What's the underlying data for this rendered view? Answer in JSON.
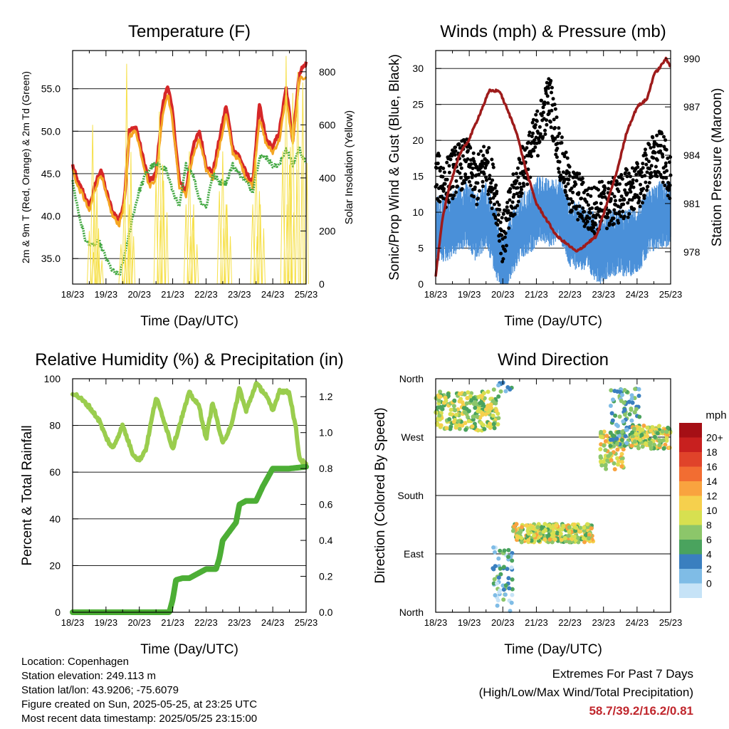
{
  "chart_data": [
    {
      "type": "line",
      "title": "Temperature (F)",
      "xlabel": "Time (Day/UTC)",
      "ylabel": "2m & 9m T (Red, Orange) & 2m Td (Green)",
      "ylabel_right": "Solar Insolation (Yellow)",
      "x_ticks": [
        "18/23",
        "19/23",
        "20/23",
        "21/23",
        "22/23",
        "23/23",
        "24/23",
        "25/23"
      ],
      "ylim": [
        32,
        59.5
      ],
      "y_ticks": [
        "35.0",
        "40.0",
        "45.0",
        "50.0",
        "55.0"
      ],
      "y_tick_values": [
        35,
        40,
        45,
        50,
        55
      ],
      "ylim_right": [
        0,
        880
      ],
      "y_ticks_right": [
        "0",
        "200",
        "400",
        "600",
        "800"
      ],
      "y_tick_values_right": [
        0,
        200,
        400,
        600,
        800
      ],
      "series": [
        {
          "color": "#d62728",
          "axis": "left",
          "style": "line",
          "x": [
            0,
            0.15,
            0.3,
            0.5,
            0.7,
            0.85,
            1,
            1.2,
            1.4,
            1.55,
            1.7,
            1.9,
            2.1,
            2.3,
            2.5,
            2.7,
            2.85,
            3,
            3.2,
            3.4,
            3.6,
            3.8,
            4,
            4.2,
            4.4,
            4.6,
            4.8,
            5,
            5.2,
            5.4,
            5.6,
            5.8,
            6,
            6.2,
            6.4,
            6.6,
            6.8,
            7
          ],
          "values": [
            46,
            44,
            43,
            41,
            44,
            45.5,
            43,
            40.5,
            39.5,
            42,
            50,
            50.5,
            47,
            44,
            45,
            53,
            55.5,
            52,
            44,
            43,
            48,
            50,
            46,
            45,
            49,
            53,
            48,
            47,
            45,
            44,
            53,
            49,
            48,
            50,
            55,
            49,
            57,
            58
          ]
        },
        {
          "color": "#f5a623",
          "axis": "left",
          "style": "line",
          "x": [
            0,
            0.15,
            0.3,
            0.5,
            0.7,
            0.85,
            1,
            1.2,
            1.4,
            1.55,
            1.7,
            1.9,
            2.1,
            2.3,
            2.5,
            2.7,
            2.85,
            3,
            3.2,
            3.4,
            3.6,
            3.8,
            4,
            4.2,
            4.4,
            4.6,
            4.8,
            5,
            5.2,
            5.4,
            5.6,
            5.8,
            6,
            6.2,
            6.4,
            6.6,
            6.8,
            7
          ],
          "values": [
            45.5,
            43.5,
            42.5,
            40.5,
            43.5,
            45,
            42.5,
            40,
            39,
            41.5,
            49.5,
            50,
            46.5,
            43.5,
            44.5,
            52,
            54.5,
            51,
            43.5,
            42.5,
            47,
            49,
            45.5,
            44.5,
            48,
            52,
            47.5,
            46.5,
            44.5,
            43.5,
            51.5,
            48.5,
            47.5,
            49,
            54,
            48.5,
            56,
            56.5
          ]
        },
        {
          "color": "#43a843",
          "axis": "left",
          "style": "line",
          "x": [
            0,
            0.2,
            0.4,
            0.6,
            0.8,
            1,
            1.2,
            1.4,
            1.6,
            1.8,
            2,
            2.2,
            2.4,
            2.6,
            2.8,
            3,
            3.2,
            3.4,
            3.6,
            3.8,
            4,
            4.2,
            4.4,
            4.6,
            4.8,
            5,
            5.2,
            5.4,
            5.6,
            5.8,
            6,
            6.2,
            6.4,
            6.6,
            6.8,
            7
          ],
          "values": [
            44,
            40,
            37,
            36.5,
            37,
            35,
            33.5,
            33,
            36,
            40,
            43,
            45,
            46,
            46,
            45.5,
            43,
            41,
            46,
            45,
            42,
            41,
            45,
            44,
            44,
            46,
            45,
            44,
            43,
            47,
            47,
            46,
            46,
            48,
            46,
            48,
            46
          ]
        },
        {
          "color": "#f6e04a",
          "axis": "right",
          "style": "spikes",
          "x": [
            0.5,
            0.6,
            0.65,
            0.75,
            1.45,
            1.55,
            1.62,
            1.7,
            2.5,
            2.6,
            2.7,
            3.4,
            3.5,
            3.6,
            4.4,
            4.5,
            4.6,
            5.4,
            5.5,
            5.6,
            6.3,
            6.4,
            6.5,
            6.6,
            6.75,
            6.9
          ],
          "values": [
            200,
            600,
            350,
            150,
            150,
            350,
            830,
            300,
            400,
            650,
            450,
            300,
            500,
            250,
            350,
            500,
            300,
            300,
            500,
            350,
            500,
            860,
            450,
            720,
            800,
            760
          ]
        }
      ]
    },
    {
      "type": "scatter",
      "title": "Winds (mph) & Pressure (mb)",
      "xlabel": "Time (Day/UTC)",
      "ylabel": "Sonic/Prop Wind & Gust (Blue, Black)",
      "ylabel_right": "Station Pressure (Maroon)",
      "x_ticks": [
        "18/23",
        "19/23",
        "20/23",
        "21/23",
        "22/23",
        "23/23",
        "24/23",
        "25/23"
      ],
      "ylim": [
        0,
        32.5
      ],
      "y_ticks": [
        "0",
        "5",
        "10",
        "15",
        "20",
        "25",
        "30"
      ],
      "y_tick_values": [
        0,
        5,
        10,
        15,
        20,
        25,
        30
      ],
      "ylim_right": [
        976,
        990.5
      ],
      "y_ticks_right": [
        "978",
        "981",
        "984",
        "987",
        "990"
      ],
      "y_tick_values_right": [
        978,
        981,
        984,
        987,
        990
      ],
      "series": [
        {
          "color": "#4a90d9",
          "axis": "left",
          "style": "band",
          "x": [
            0,
            0.3,
            0.6,
            0.9,
            1.2,
            1.5,
            1.8,
            2,
            2.2,
            2.5,
            2.8,
            3.1,
            3.4,
            3.7,
            4,
            4.3,
            4.6,
            4.9,
            5.2,
            5.5,
            5.8,
            6.1,
            6.4,
            6.7,
            7
          ],
          "values": [
            9,
            9,
            10,
            11,
            9,
            11,
            7,
            3,
            6,
            9,
            10,
            12,
            11,
            12,
            8,
            8,
            7,
            6,
            7,
            7,
            7,
            8,
            10,
            11,
            11
          ]
        },
        {
          "color": "#000000",
          "axis": "left",
          "style": "points",
          "x": [
            0,
            0.3,
            0.6,
            0.9,
            1.2,
            1.5,
            1.8,
            2,
            2.2,
            2.5,
            2.8,
            3.1,
            3.4,
            3.7,
            4,
            4.3,
            4.6,
            4.9,
            5.2,
            5.5,
            5.8,
            6.1,
            6.4,
            6.7,
            7
          ],
          "values": [
            15,
            14,
            16,
            17,
            14,
            17,
            12,
            6,
            10,
            15,
            18,
            22,
            26,
            18,
            13,
            12,
            10,
            11,
            11,
            12,
            13,
            14,
            17,
            18,
            15
          ]
        },
        {
          "color": "#9e1b1b",
          "axis": "right",
          "style": "line",
          "x": [
            0,
            0.2,
            0.4,
            0.7,
            1,
            1.3,
            1.6,
            1.9,
            2.1,
            2.4,
            2.7,
            3,
            3.3,
            3.6,
            3.9,
            4.2,
            4.5,
            4.8,
            5.1,
            5.4,
            5.7,
            6,
            6.3,
            6.5,
            6.7,
            6.85,
            7
          ],
          "values": [
            976.5,
            980,
            982,
            984,
            985,
            986.5,
            988,
            988,
            987,
            985.5,
            983,
            981,
            980,
            979,
            978.5,
            978,
            978.5,
            979,
            981,
            983,
            985.5,
            987,
            987.5,
            989,
            989.5,
            990,
            989.5
          ]
        }
      ]
    },
    {
      "type": "line",
      "title": "Relative Humidity (%) & Precipitation (in)",
      "xlabel": "Time (Day/UTC)",
      "ylabel": "Percent & Total Rainfall",
      "x_ticks": [
        "18/23",
        "19/23",
        "20/23",
        "21/23",
        "22/23",
        "23/23",
        "24/23",
        "25/23"
      ],
      "ylim": [
        0,
        100
      ],
      "y_ticks": [
        "0",
        "20",
        "40",
        "60",
        "80",
        "100"
      ],
      "y_tick_values": [
        0,
        20,
        40,
        60,
        80,
        100
      ],
      "ylim_right": [
        0,
        1.3
      ],
      "y_ticks_right": [
        "0.0",
        "0.2",
        "0.4",
        "0.6",
        "0.8",
        "1.0",
        "1.2"
      ],
      "y_tick_values_right": [
        0,
        0.2,
        0.4,
        0.6,
        0.8,
        1.0,
        1.2
      ],
      "series": [
        {
          "color": "#9acd4e",
          "axis": "left",
          "style": "line",
          "x": [
            0,
            0.2,
            0.5,
            0.8,
            1,
            1.2,
            1.5,
            1.8,
            2,
            2.2,
            2.5,
            2.7,
            3,
            3.2,
            3.5,
            3.8,
            4,
            4.2,
            4.5,
            4.8,
            5,
            5.2,
            5.5,
            5.8,
            6,
            6.2,
            6.5,
            6.7,
            6.8,
            7
          ],
          "values": [
            94,
            92,
            88,
            82,
            75,
            70,
            80,
            68,
            65,
            70,
            92,
            84,
            70,
            80,
            94,
            88,
            74,
            90,
            72,
            82,
            96,
            86,
            98,
            93,
            86,
            95,
            94,
            78,
            66,
            63
          ]
        },
        {
          "color": "#4cae35",
          "axis": "right",
          "style": "line",
          "x": [
            0,
            1,
            2,
            2.9,
            3,
            3.1,
            3.3,
            3.5,
            4,
            4.3,
            4.4,
            4.5,
            4.7,
            4.9,
            5,
            5.2,
            5.5,
            5.7,
            6,
            6.2,
            6.5,
            7
          ],
          "values": [
            0,
            0,
            0,
            0,
            0.07,
            0.18,
            0.19,
            0.19,
            0.24,
            0.24,
            0.3,
            0.4,
            0.45,
            0.5,
            0.6,
            0.62,
            0.62,
            0.7,
            0.8,
            0.8,
            0.8,
            0.81
          ]
        }
      ]
    },
    {
      "type": "scatter",
      "title": "Wind Direction",
      "xlabel": "Time (Day/UTC)",
      "ylabel": "Direction (Colored By Speed)",
      "x_ticks": [
        "18/23",
        "19/23",
        "20/23",
        "21/23",
        "22/23",
        "23/23",
        "24/23",
        "25/23"
      ],
      "ylim": [
        0,
        360
      ],
      "y_ticks": [
        "North",
        "East",
        "South",
        "West",
        "North"
      ],
      "y_tick_values": [
        0,
        90,
        180,
        270,
        360
      ],
      "colorbar": {
        "title": "mph",
        "labels": [
          "20+",
          "18",
          "16",
          "14",
          "12",
          "10",
          "8",
          "6",
          "4",
          "2",
          "0"
        ],
        "colors": [
          "#a50f15",
          "#c8201f",
          "#e0432a",
          "#f26d32",
          "#f9a33f",
          "#f6d04d",
          "#d7e050",
          "#8cc66a",
          "#4aa35e",
          "#3a7fbf",
          "#7fbce6",
          "#c6e3f7"
        ]
      },
      "clusters": [
        {
          "x0": 0,
          "x1": 1.9,
          "dir_mid": 310,
          "spread": 30,
          "speed": 9
        },
        {
          "x0": 1.7,
          "x1": 2.3,
          "dir_mid": 40,
          "spread": 60,
          "speed": 4
        },
        {
          "x0": 2.3,
          "x1": 4.7,
          "dir_mid": 122,
          "spread": 14,
          "speed": 10
        },
        {
          "x0": 4.9,
          "x1": 5.6,
          "dir_mid": 250,
          "spread": 30,
          "speed": 11
        },
        {
          "x0": 5.2,
          "x1": 6.1,
          "dir_mid": 300,
          "spread": 45,
          "speed": 5
        },
        {
          "x0": 5.8,
          "x1": 7,
          "dir_mid": 270,
          "spread": 18,
          "speed": 10
        }
      ]
    }
  ],
  "info": {
    "location": "Location: Copenhagen",
    "elevation": "Station elevation: 249.113 m",
    "latlon": "Station lat/lon: 43.9206; -75.6079",
    "created": "Figure created on Sun, 2025-05-25, at 23:25 UTC",
    "latest": "Most recent data timestamp: 2025/05/25 23:15:00"
  },
  "extremes": {
    "title": "Extremes For Past 7 Days",
    "subtitle": "(High/Low/Max Wind/Total Precipitation)",
    "values": "58.7/39.2/16.2/0.81"
  }
}
